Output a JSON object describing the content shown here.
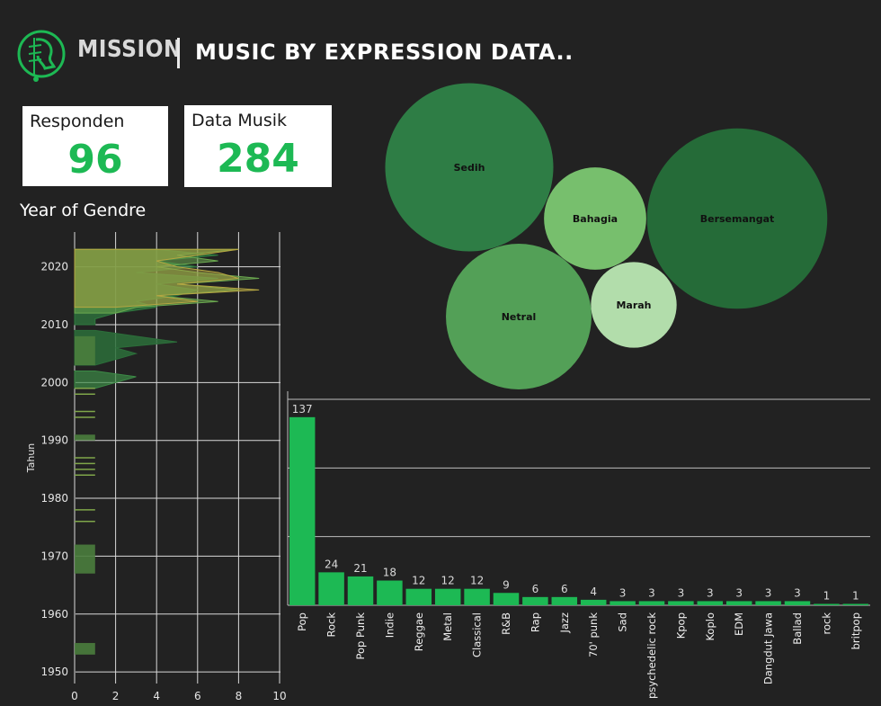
{
  "header": {
    "brand": "MISSION",
    "title": "MUSIC BY EXPRESSION DATA.."
  },
  "kpis": {
    "responden": {
      "label": "Responden",
      "value": "96"
    },
    "data_musik": {
      "label": "Data Musik",
      "value": "284"
    }
  },
  "colors": {
    "background": "#222222",
    "accent": "#1db954",
    "bar": "#1db954"
  },
  "chart_data": [
    {
      "type": "area",
      "title": "Year of Gendre",
      "ylabel": "Tahun",
      "xlabel": "",
      "xlim": [
        0,
        10
      ],
      "ylim": [
        1948,
        2026
      ],
      "x_ticks": [
        0,
        2,
        4,
        6,
        8,
        10
      ],
      "y_ticks": [
        1950,
        1960,
        1970,
        1980,
        1990,
        2000,
        2010,
        2020
      ],
      "grid": true,
      "layers": [
        {
          "name": "",
          "color": "#2f7a3f",
          "opacity": 0.75,
          "points": [
            [
              2023,
              4
            ],
            [
              2022,
              7
            ],
            [
              2021,
              4
            ],
            [
              2020,
              6
            ],
            [
              2019,
              3
            ],
            [
              2018,
              7
            ],
            [
              2017,
              4
            ],
            [
              2016,
              6
            ],
            [
              2015,
              5
            ],
            [
              2014,
              3
            ],
            [
              2013,
              4
            ],
            [
              2012,
              2
            ],
            [
              2011,
              1
            ],
            [
              2010,
              1
            ]
          ]
        },
        {
          "name": "",
          "color": "#6aa84f",
          "opacity": 0.55,
          "points": [
            [
              2023,
              8
            ],
            [
              2022,
              5
            ],
            [
              2021,
              7
            ],
            [
              2020,
              4
            ],
            [
              2019,
              6
            ],
            [
              2018,
              9
            ],
            [
              2017,
              5
            ],
            [
              2016,
              8
            ],
            [
              2015,
              4
            ],
            [
              2014,
              7
            ],
            [
              2013,
              3
            ],
            [
              2012,
              2
            ]
          ]
        },
        {
          "name": "",
          "color": "#b5a642",
          "opacity": 0.45,
          "points": [
            [
              2023,
              8
            ],
            [
              2022,
              6
            ],
            [
              2021,
              4
            ],
            [
              2020,
              5
            ],
            [
              2019,
              7
            ],
            [
              2018,
              8
            ],
            [
              2017,
              5
            ],
            [
              2016,
              9
            ],
            [
              2015,
              4
            ],
            [
              2014,
              6
            ],
            [
              2013,
              2
            ]
          ]
        },
        {
          "name": "",
          "color": "#2c6e3a",
          "opacity": 0.85,
          "points": [
            [
              2009,
              1
            ],
            [
              2008,
              3
            ],
            [
              2007,
              5
            ],
            [
              2006,
              2
            ],
            [
              2005,
              3
            ],
            [
              2004,
              2
            ],
            [
              2003,
              1
            ]
          ]
        },
        {
          "name": "",
          "color": "#3c8a46",
          "opacity": 0.7,
          "points": [
            [
              2002,
              1
            ],
            [
              2001,
              3
            ],
            [
              2000,
              2
            ],
            [
              1999,
              1
            ]
          ]
        }
      ],
      "blocks": [
        {
          "from": 1972,
          "to": 1967,
          "value": 1
        },
        {
          "from": 1955,
          "to": 1953,
          "value": 1
        },
        {
          "from": 1991,
          "to": 1990,
          "value": 1
        },
        {
          "from": 2008,
          "to": 2003,
          "value": 1
        }
      ],
      "ticks_lines": [
        1999,
        1998,
        1995,
        1994,
        1987,
        1986,
        1985,
        1984,
        1978,
        1976
      ]
    },
    {
      "type": "bubble",
      "title": "",
      "bubbles": [
        {
          "label": "Sedih",
          "value": 100,
          "color": "#2e7d45"
        },
        {
          "label": "Bersemangat",
          "value": 115,
          "color": "#256b38"
        },
        {
          "label": "Netral",
          "value": 75,
          "color": "#53a057"
        },
        {
          "label": "Bahagia",
          "value": 37,
          "color": "#77bf6d"
        },
        {
          "label": "Marah",
          "value": 26,
          "color": "#b2ddab"
        }
      ]
    },
    {
      "type": "bar",
      "title": "",
      "xlabel": "",
      "ylabel": "",
      "categories": [
        "Pop",
        "Rock",
        "Pop Punk",
        "Indie",
        "Reggae",
        "Metal",
        "Classical",
        "R&B",
        "Rap",
        "Jazz",
        "70' punk",
        "Sad",
        "psychedelic rock",
        "Kpop",
        "Koplo",
        "EDM",
        "Dangdut Jawa",
        "Ballad",
        "rock",
        "britpop"
      ],
      "values": [
        137,
        24,
        21,
        18,
        12,
        12,
        12,
        9,
        6,
        6,
        4,
        3,
        3,
        3,
        3,
        3,
        3,
        3,
        1,
        1
      ],
      "ylim": [
        0,
        150
      ],
      "grid_values": [
        50,
        100,
        150
      ],
      "grid": true
    }
  ]
}
